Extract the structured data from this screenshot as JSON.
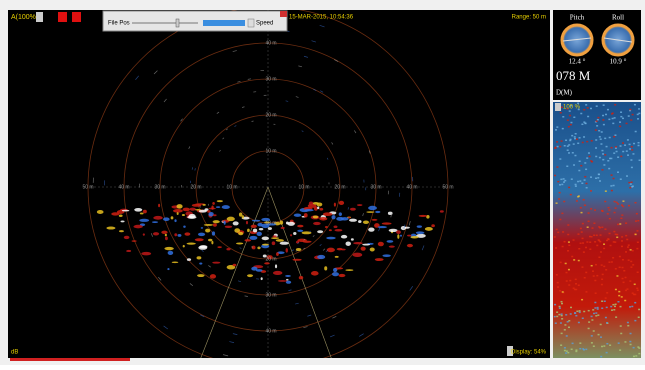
{
  "header": {
    "mode": "A(100%)",
    "timestamp": "15-MAR-2015, 10:54:36",
    "range": "Range: 50 m"
  },
  "player": {
    "file_pos": "File Pos",
    "speed": "Speed"
  },
  "rings": {
    "up": [
      "10 m",
      "20 m",
      "30 m",
      "40 m"
    ],
    "left": [
      "10 m",
      "20 m",
      "30 m",
      "40 m",
      "50 m"
    ],
    "right": [
      "10 m",
      "20 m",
      "30 m",
      "40 m",
      "50 m"
    ],
    "down": [
      "10 m",
      "20 m",
      "30 m",
      "40 m"
    ]
  },
  "footer": {
    "unit": "dB",
    "display": "Display: 54%"
  },
  "attitude": {
    "pitch": "Pitch",
    "roll": "Roll",
    "pitch_value": "12.4 °",
    "roll_value": "10.9 °",
    "depth": "078 M",
    "depth_label": "D(M)"
  },
  "waterfall": {
    "gain": "100 %"
  }
}
